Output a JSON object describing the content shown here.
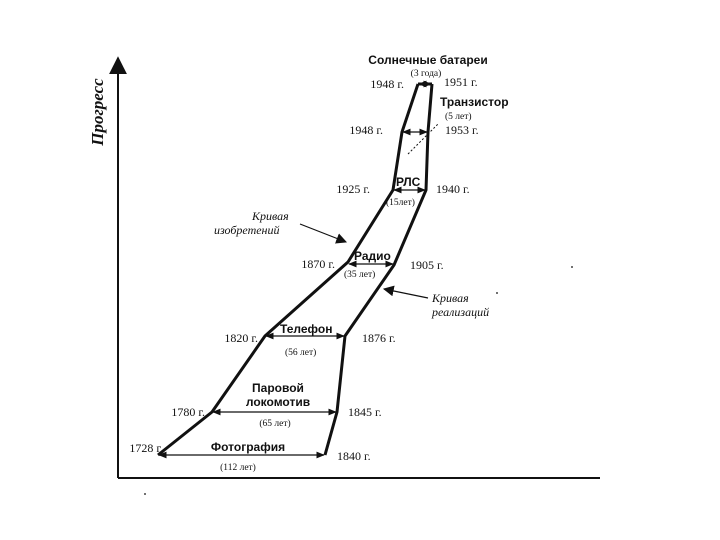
{
  "axis": {
    "y_label": "Прогресс"
  },
  "curves": {
    "inventions_label_1": "Кривая",
    "inventions_label_2": "изобретений",
    "realization_label_1": "Кривая",
    "realization_label_2": "реализаций"
  },
  "inventions": [
    {
      "name": "Солнечные батареи",
      "invented": "1948 г.",
      "realized": "1951 г.",
      "gap": "(3 года)"
    },
    {
      "name": "Транзистор",
      "invented": "1948 г.",
      "realized": "1953 г.",
      "gap": "(5 лет)"
    },
    {
      "name": "РЛС",
      "invented": "1925 г.",
      "realized": "1940 г.",
      "gap": "(15лет)"
    },
    {
      "name": "Радио",
      "invented": "1870 г.",
      "realized": "1905 г.",
      "gap": "(35 лет)"
    },
    {
      "name": "Телефон",
      "invented": "1820 г.",
      "realized": "1876 г.",
      "gap": "(56 лет)"
    },
    {
      "name_line1": "Паровой",
      "name_line2": "локомотив",
      "invented": "1780 г.",
      "realized": "1845 г.",
      "gap": "(65 лет)"
    },
    {
      "name": "Фотография",
      "invented": "1728 г.",
      "realized": "1840 г.",
      "gap": "(112 лет)"
    }
  ],
  "colors": {
    "ink": "#111111",
    "background": "#ffffff"
  }
}
